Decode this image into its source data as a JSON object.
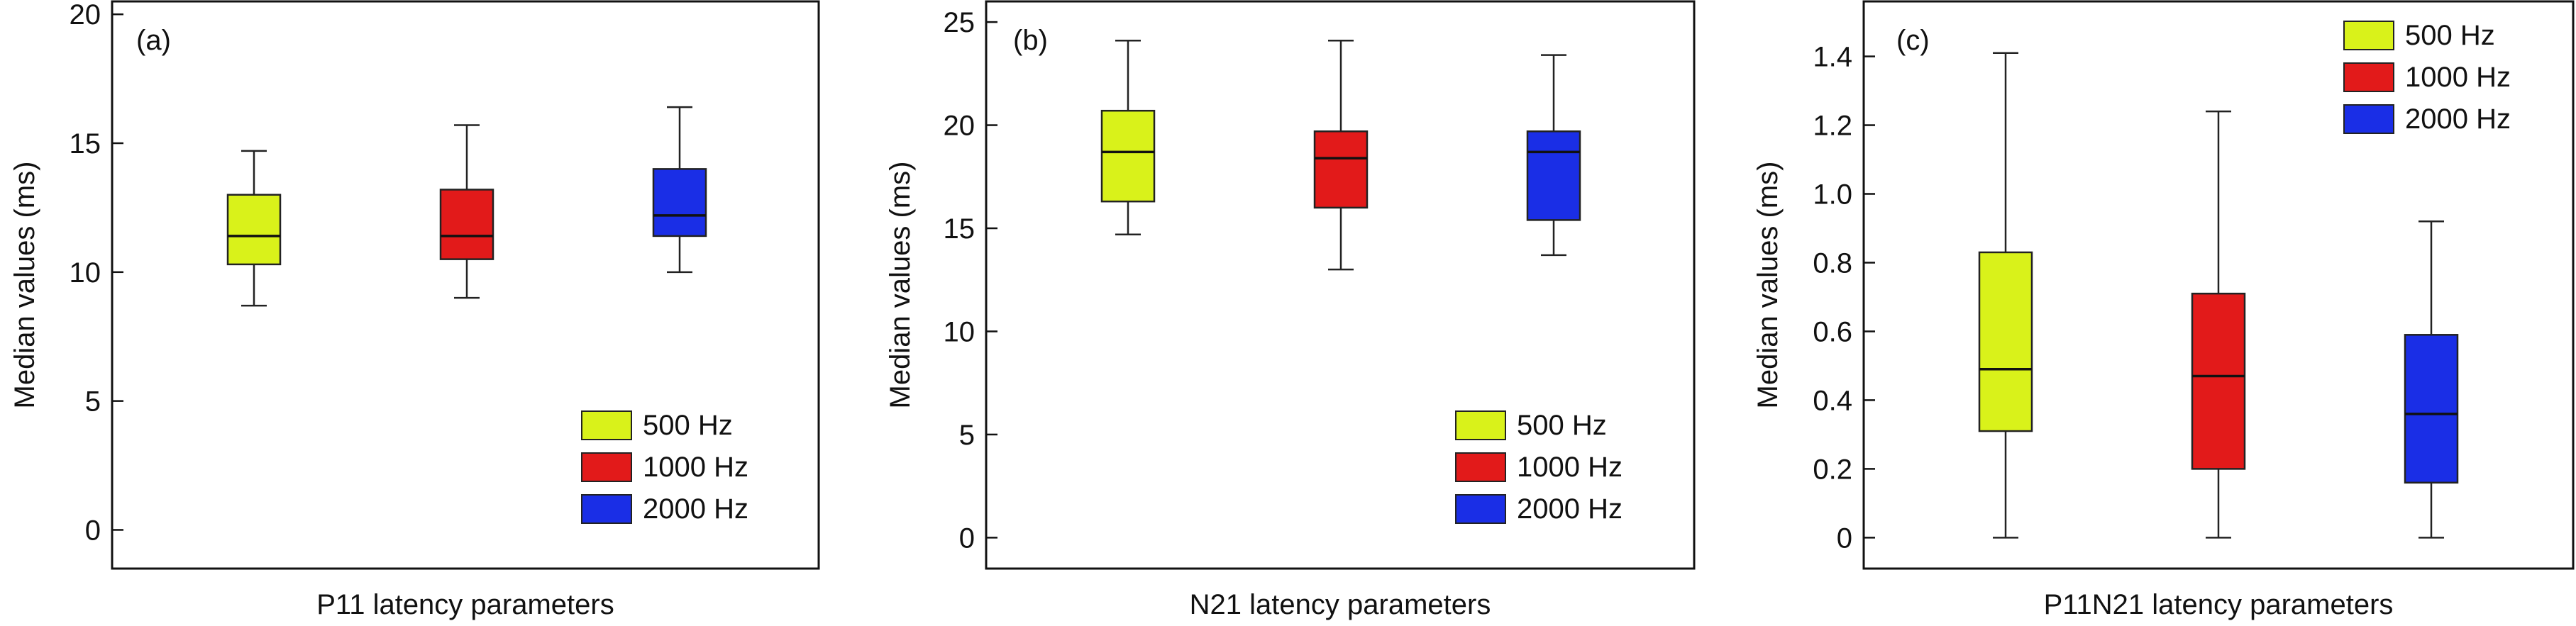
{
  "colors": {
    "c500": "#d9f21a",
    "c1000": "#e21a1a",
    "c2000": "#1a2ee6",
    "median": "#111111",
    "frame": "#111111"
  },
  "chart_data": [
    {
      "type": "box",
      "panel_label": "(a)",
      "xlabel": "P11 latency parameters",
      "ylabel": "Median values (ms)",
      "ylim": [
        -1.5,
        20.5
      ],
      "yticks": [
        0,
        5,
        10,
        15,
        20
      ],
      "tick_labels": [
        "0",
        "5",
        "10",
        "15",
        "20"
      ],
      "legend_position": "bottom-right",
      "legend": [
        "500 Hz",
        "1000 Hz",
        "2000 Hz"
      ],
      "series": [
        {
          "name": "500 Hz",
          "min": 8.7,
          "q1": 10.3,
          "median": 11.4,
          "q3": 13.0,
          "max": 14.7
        },
        {
          "name": "1000 Hz",
          "min": 9.0,
          "q1": 10.5,
          "median": 11.4,
          "q3": 13.2,
          "max": 15.7
        },
        {
          "name": "2000 Hz",
          "min": 10.0,
          "q1": 11.4,
          "median": 12.2,
          "q3": 14.0,
          "max": 16.4
        }
      ]
    },
    {
      "type": "box",
      "panel_label": "(b)",
      "xlabel": "N21 latency parameters",
      "ylabel": "Median values (ms)",
      "ylim": [
        -1.5,
        26
      ],
      "yticks": [
        0,
        5,
        10,
        15,
        20,
        25
      ],
      "tick_labels": [
        "0",
        "5",
        "10",
        "15",
        "20",
        "25"
      ],
      "legend_position": "bottom-right",
      "legend": [
        "500 Hz",
        "1000 Hz",
        "2000 Hz"
      ],
      "series": [
        {
          "name": "500 Hz",
          "min": 14.7,
          "q1": 16.3,
          "median": 18.7,
          "q3": 20.7,
          "max": 24.1
        },
        {
          "name": "1000 Hz",
          "min": 13.0,
          "q1": 16.0,
          "median": 18.4,
          "q3": 19.7,
          "max": 24.1
        },
        {
          "name": "2000 Hz",
          "min": 13.7,
          "q1": 15.4,
          "median": 18.7,
          "q3": 19.7,
          "max": 23.4
        }
      ]
    },
    {
      "type": "box",
      "panel_label": "(c)",
      "xlabel": "P11N21 latency parameters",
      "ylabel": "Median values (ms)",
      "ylim": [
        -0.09,
        1.56
      ],
      "yticks": [
        0,
        0.2,
        0.4,
        0.6,
        0.8,
        1.0,
        1.2,
        1.4
      ],
      "tick_labels": [
        "0",
        "0.2",
        "0.4",
        "0.6",
        "0.8",
        "1.0",
        "1.2",
        "1.4"
      ],
      "legend_position": "top-right",
      "legend": [
        "500 Hz",
        "1000 Hz",
        "2000 Hz"
      ],
      "series": [
        {
          "name": "500 Hz",
          "min": 0.0,
          "q1": 0.31,
          "median": 0.49,
          "q3": 0.83,
          "max": 1.41
        },
        {
          "name": "1000 Hz",
          "min": 0.0,
          "q1": 0.2,
          "median": 0.47,
          "q3": 0.71,
          "max": 1.24
        },
        {
          "name": "2000 Hz",
          "min": 0.0,
          "q1": 0.16,
          "median": 0.36,
          "q3": 0.59,
          "max": 0.92
        }
      ]
    }
  ]
}
